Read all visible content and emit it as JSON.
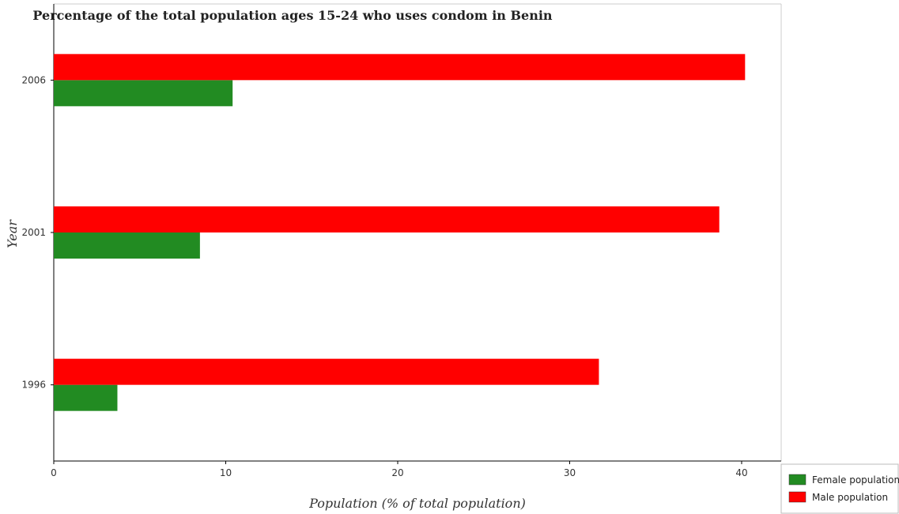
{
  "chart_data": {
    "type": "bar",
    "orientation": "horizontal",
    "title": "Percentage of the total population ages 15-24 who uses condom in Benin",
    "xlabel": "Population (% of total population)",
    "ylabel": "Year",
    "categories": [
      "1996",
      "2001",
      "2006"
    ],
    "x_ticks": [
      "0",
      "10",
      "20",
      "30",
      "40"
    ],
    "xlim": [
      0,
      42.3
    ],
    "grid": false,
    "legend_position": "bottom-right",
    "series": [
      {
        "name": "Female population",
        "color": "#228b22",
        "values": [
          3.7,
          8.5,
          10.4
        ]
      },
      {
        "name": "Male population",
        "color": "#ff0000",
        "values": [
          31.7,
          38.7,
          40.2
        ]
      }
    ]
  }
}
